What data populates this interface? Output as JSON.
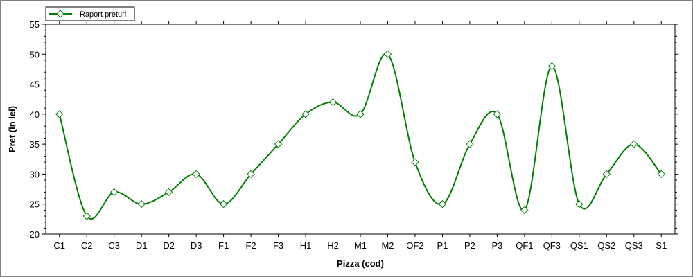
{
  "chart_data": {
    "type": "line",
    "title": "",
    "xlabel": "Pizza (cod)",
    "ylabel": "Pret (in lei)",
    "ylim": [
      20,
      55
    ],
    "yticks": [
      20,
      25,
      30,
      35,
      40,
      45,
      50,
      55
    ],
    "smooth": true,
    "grid": false,
    "legend": "top-left",
    "categories": [
      "C1",
      "C2",
      "C3",
      "D1",
      "D2",
      "D3",
      "F1",
      "F2",
      "F3",
      "H1",
      "H2",
      "M1",
      "M2",
      "OF2",
      "P1",
      "P2",
      "P3",
      "QF1",
      "QF3",
      "QS1",
      "QS2",
      "QS3",
      "S1"
    ],
    "series": [
      {
        "name": "Raport preturi",
        "color": "#008000",
        "marker": "diamond",
        "values": [
          40,
          23,
          27,
          25,
          27,
          30,
          25,
          30,
          35,
          40,
          42,
          40,
          50,
          32,
          25,
          35,
          40,
          24,
          48,
          25,
          30,
          35,
          30
        ]
      }
    ]
  }
}
